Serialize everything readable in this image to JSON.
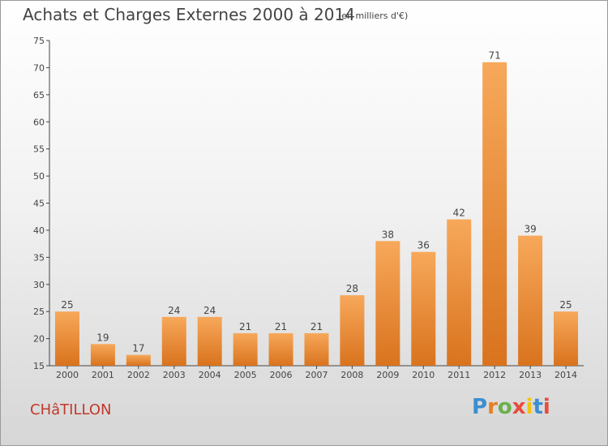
{
  "title": "Achats et Charges Externes 2000 à 2014",
  "subtitle": "(en milliers d'€)",
  "place": "CHâTILLON",
  "logo": {
    "text": "Proxiti",
    "letters": [
      "P",
      "r",
      "o",
      "x",
      "i",
      "t",
      "i"
    ],
    "colors": [
      "#3a8fd0",
      "#e67e22",
      "#6ab04c",
      "#e74c3c",
      "#f1c40f",
      "#3a8fd0",
      "#e74c3c"
    ]
  },
  "colors": {
    "bar_light": "#f7a85a",
    "bar_dark": "#d9731e",
    "axis": "#444444",
    "place": "#c0392b"
  },
  "chart_data": {
    "type": "bar",
    "title": "Achats et Charges Externes 2000 à 2014",
    "subtitle": "(en milliers d'€)",
    "categories": [
      "2000",
      "2001",
      "2002",
      "2003",
      "2004",
      "2005",
      "2006",
      "2007",
      "2008",
      "2009",
      "2010",
      "2011",
      "2012",
      "2013",
      "2014"
    ],
    "values": [
      25,
      19,
      17,
      24,
      24,
      21,
      21,
      21,
      28,
      38,
      36,
      42,
      71,
      39,
      25
    ],
    "ylim": [
      15,
      75
    ],
    "yticks": [
      15,
      20,
      25,
      30,
      35,
      40,
      45,
      50,
      55,
      60,
      65,
      70,
      75
    ],
    "grid": false,
    "data_labels": true
  }
}
